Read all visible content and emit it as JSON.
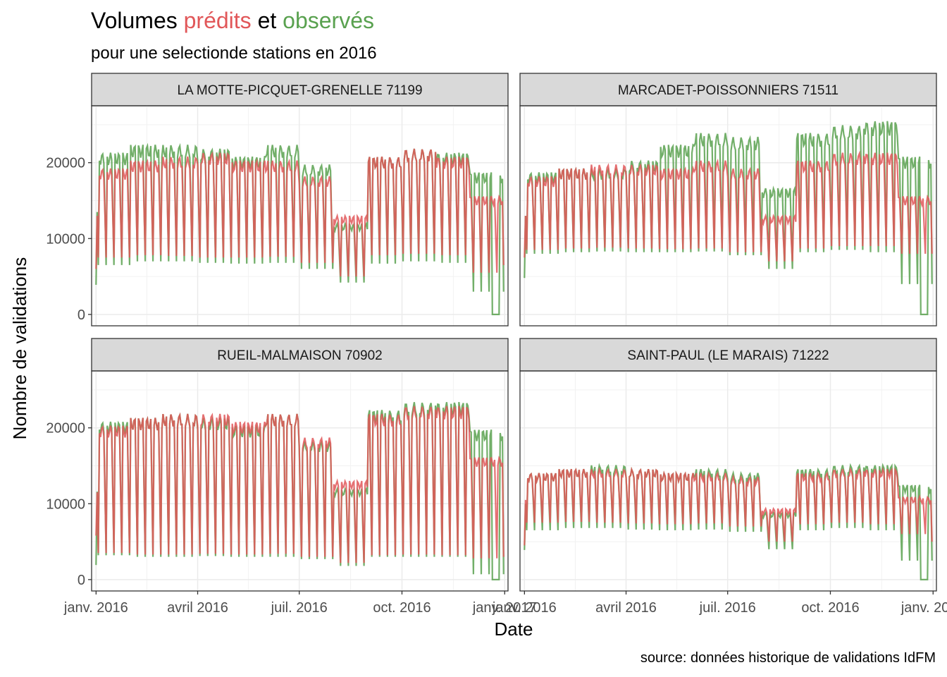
{
  "title": {
    "part1": "Volumes ",
    "part2": "prédits",
    "part3": " et ",
    "part4": "observés"
  },
  "subtitle": "pour une selectionde stations en 2016",
  "caption": "source: données historique de validations IdFM",
  "colors": {
    "predicted": "#E15759",
    "observed": "#59A14F",
    "strip_bg": "#D9D9D9",
    "grid": "#EBEBEB"
  },
  "chart_data": {
    "type": "line",
    "xlabel": "Date",
    "ylabel": "Nombre de validations",
    "xlim": [
      "2015-12-28",
      "2017-01-04"
    ],
    "ylim": [
      -1500,
      27500
    ],
    "x_ticks": [
      {
        "date": "2016-01-01",
        "label": "janv. 2016"
      },
      {
        "date": "2016-04-01",
        "label": "avril 2016"
      },
      {
        "date": "2016-07-01",
        "label": "juil. 2016"
      },
      {
        "date": "2016-10-01",
        "label": "oct. 2016"
      },
      {
        "date": "2017-01-01",
        "label": "janv. 2017"
      }
    ],
    "y_ticks": [
      0,
      10000,
      20000
    ],
    "legend": "none (colours named in title)",
    "facets": [
      {
        "label": "LA MOTTE-PICQUET-GRENELLE 71199",
        "series": [
          {
            "name": "prédits",
            "monthly_weekday": [
              18500,
              19500,
              20000,
              20500,
              19500,
              19500,
              17500,
              12500,
              20000,
              21000,
              20000,
              15000
            ],
            "monthly_weekend": [
              7500,
              7800,
              7700,
              7500,
              7500,
              7600,
              6800,
              5000,
              7800,
              8000,
              7800,
              5500
            ]
          },
          {
            "name": "observés",
            "monthly_weekday": [
              20500,
              21500,
              21500,
              21000,
              20000,
              21500,
              19000,
              11500,
              20000,
              21000,
              20500,
              18000
            ],
            "monthly_weekend": [
              6500,
              7000,
              7000,
              6800,
              6700,
              6800,
              6000,
              4200,
              6700,
              7000,
              6800,
              3000
            ]
          }
        ],
        "annotations": {
          "observed_min_near_dec_25": 0,
          "predicted_start": 6000,
          "predicted_end": 6500
        }
      },
      {
        "label": "MARCADET-POISSONNIERS 71511",
        "series": [
          {
            "name": "prédits",
            "monthly_weekday": [
              17500,
              18500,
              19000,
              19000,
              18500,
              19500,
              18500,
              12500,
              19500,
              20500,
              20500,
              15000
            ],
            "monthly_weekend": [
              8500,
              8700,
              8800,
              8700,
              8600,
              8700,
              8200,
              7000,
              8700,
              9000,
              9000,
              8000
            ]
          },
          {
            "name": "observés",
            "monthly_weekday": [
              18000,
              18500,
              18500,
              19500,
              21500,
              23000,
              22500,
              16000,
              23000,
              24000,
              24500,
              20000
            ],
            "monthly_weekend": [
              8000,
              8200,
              8300,
              8200,
              8200,
              8300,
              7800,
              6000,
              8200,
              8500,
              8200,
              4000
            ]
          }
        ],
        "annotations": {
          "observed_min_near_dec_25": 0,
          "predicted_start": 7500,
          "predicted_end": 8000
        }
      },
      {
        "label": "RUEIL-MALMAISON 70902",
        "series": [
          {
            "name": "prédits",
            "monthly_weekday": [
              19500,
              20500,
              21000,
              21000,
              20000,
              21000,
              18000,
              12500,
              21000,
              22000,
              22000,
              15500
            ],
            "monthly_weekend": [
              3500,
              3300,
              3300,
              3400,
              3300,
              3400,
              3000,
              2200,
              3200,
              3300,
              3200,
              2800
            ]
          },
          {
            "name": "observés",
            "monthly_weekday": [
              20000,
              20500,
              21000,
              20500,
              19500,
              21000,
              17500,
              11500,
              21500,
              22500,
              22500,
              19000
            ],
            "monthly_weekend": [
              3200,
              3000,
              3000,
              3100,
              3000,
              3000,
              2700,
              1800,
              3000,
              3000,
              3000,
              700
            ]
          }
        ],
        "annotations": {
          "observed_min_near_dec_25": 0,
          "predicted_start": 5800,
          "predicted_end": 3000
        }
      },
      {
        "label": "SAINT-PAUL (LE MARAIS) 71222",
        "series": [
          {
            "name": "prédits",
            "monthly_weekday": [
              13500,
              14000,
              14000,
              14000,
              13500,
              13500,
              13000,
              9000,
              13500,
              14000,
              14000,
              10500
            ],
            "monthly_weekend": [
              7500,
              7600,
              7500,
              7400,
              7300,
              7400,
              7000,
              5000,
              7300,
              7500,
              7300,
              6000
            ]
          },
          {
            "name": "observés",
            "monthly_weekday": [
              13500,
              14000,
              14500,
              14000,
              13500,
              14000,
              13500,
              8500,
              14000,
              14500,
              14500,
              12000
            ],
            "monthly_weekend": [
              6500,
              6800,
              6800,
              6600,
              6500,
              6600,
              6300,
              4000,
              6500,
              6800,
              6500,
              2500
            ]
          }
        ],
        "annotations": {
          "observed_min_near_dec_25": 0,
          "predicted_start": 4500,
          "predicted_end": 5000
        }
      }
    ]
  }
}
